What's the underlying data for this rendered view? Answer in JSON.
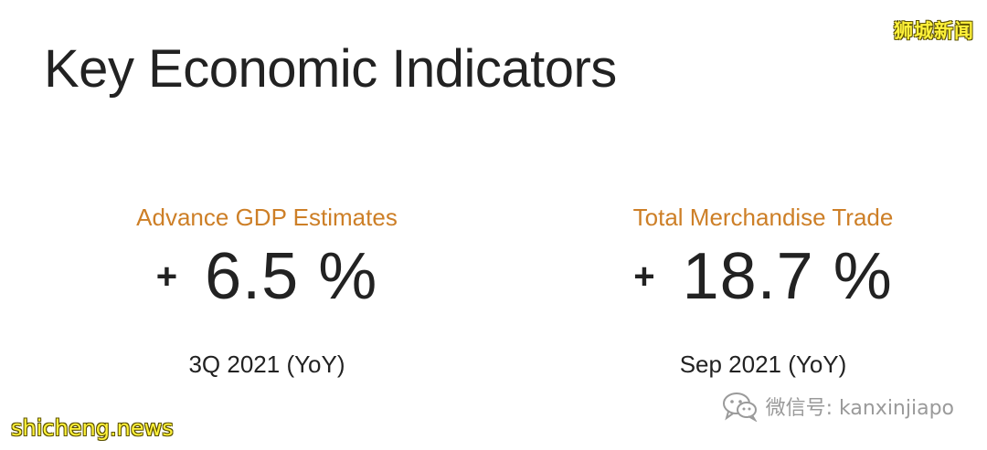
{
  "watermark": {
    "top_right": "狮城新闻",
    "bottom_left": "shicheng.news"
  },
  "page": {
    "title": "Key Economic Indicators"
  },
  "indicators": [
    {
      "label": "Advance GDP Estimates",
      "sign": "+",
      "value": "6.5 %",
      "period": "3Q 2021 (YoY)"
    },
    {
      "label": "Total Merchandise Trade",
      "sign": "+",
      "value": "18.7 %",
      "period": "Sep 2021 (YoY)"
    }
  ],
  "wechat": {
    "icon": "wechat-icon",
    "text": "微信号: kanxinjiapo"
  },
  "colors": {
    "accent": "#cd7f27",
    "text": "#222222",
    "watermark": "#fff23a"
  }
}
